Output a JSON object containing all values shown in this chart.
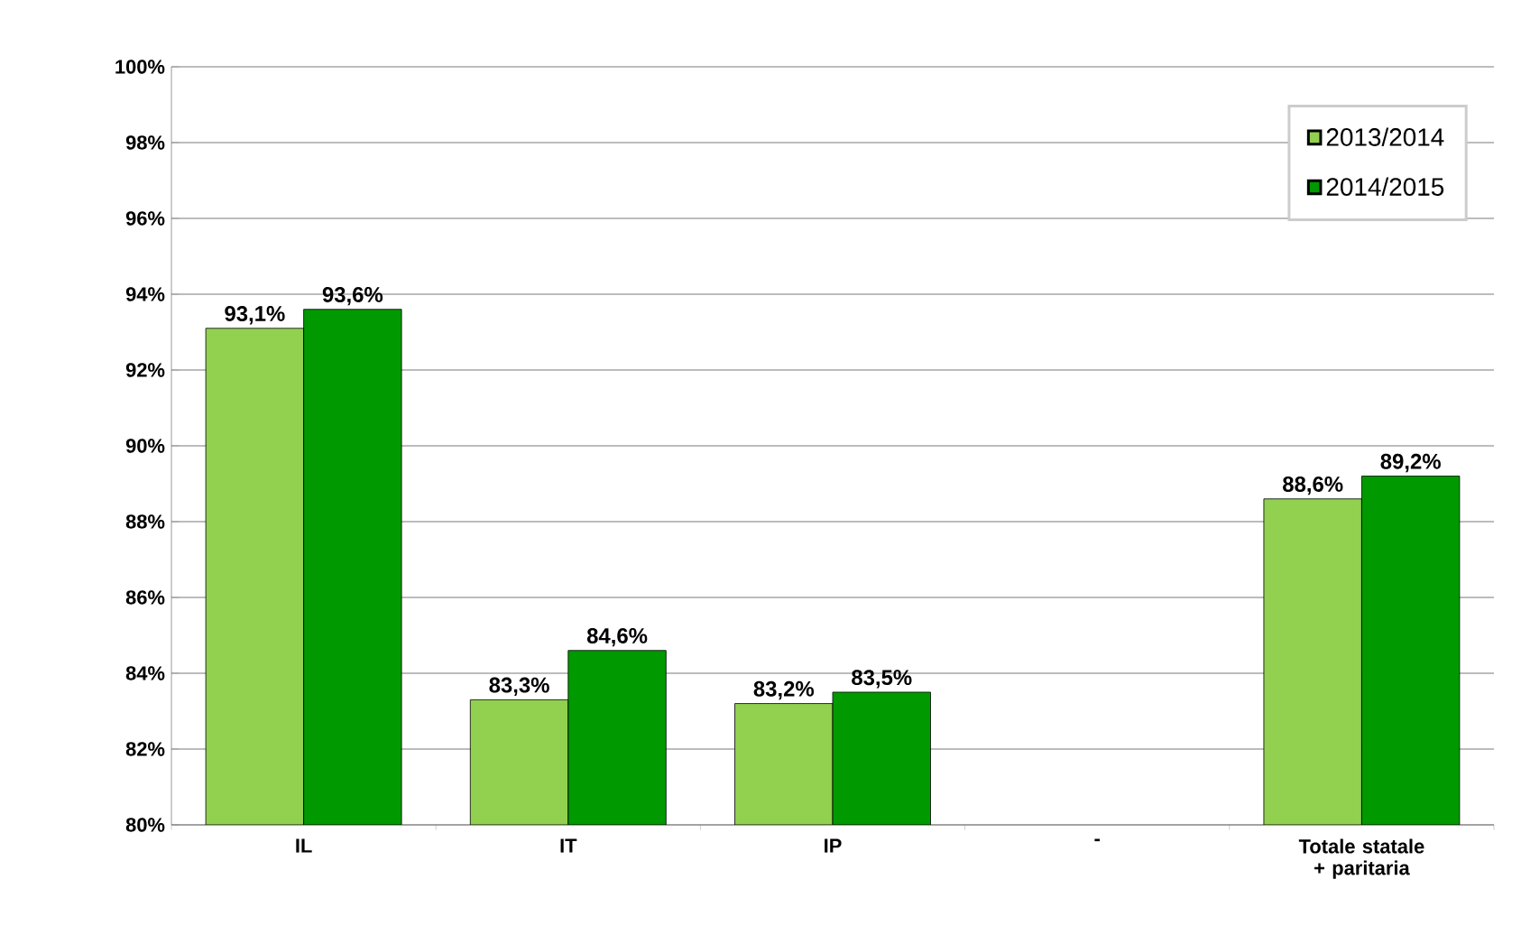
{
  "chart_data": {
    "type": "bar",
    "categories": [
      "IL",
      "IT",
      "IP",
      "-",
      "Totale statale + paritaria"
    ],
    "series": [
      {
        "name": "2013/2014",
        "color": "#92d050",
        "values": [
          93.1,
          83.3,
          83.2,
          null,
          88.6
        ],
        "value_labels": [
          "93,1%",
          "83,3%",
          "83,2%",
          null,
          "88,6%"
        ]
      },
      {
        "name": "2014/2015",
        "color": "#009900",
        "values": [
          93.6,
          84.6,
          83.5,
          null,
          89.2
        ],
        "value_labels": [
          "93,6%",
          "84,6%",
          "83,5%",
          null,
          "89,2%"
        ]
      }
    ],
    "ylim": [
      80,
      100
    ],
    "yticks": [
      {
        "value": 80,
        "label": "80%"
      },
      {
        "value": 82,
        "label": "82%"
      },
      {
        "value": 84,
        "label": "84%"
      },
      {
        "value": 86,
        "label": "86%"
      },
      {
        "value": 88,
        "label": "88%"
      },
      {
        "value": 90,
        "label": "90%"
      },
      {
        "value": 92,
        "label": "92%"
      },
      {
        "value": 94,
        "label": "94%"
      },
      {
        "value": 96,
        "label": "96%"
      },
      {
        "value": 98,
        "label": "98%"
      },
      {
        "value": 100,
        "label": "100%"
      }
    ],
    "grid": "y",
    "legend": "top right"
  }
}
